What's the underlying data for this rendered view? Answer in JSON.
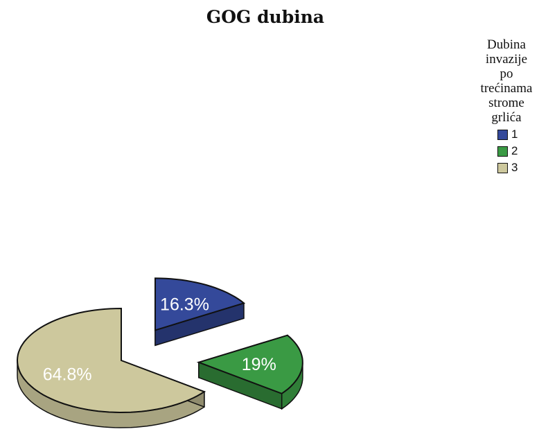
{
  "chart_data": {
    "type": "pie",
    "title": "GOG dubina",
    "legend_title": [
      "Dubina",
      "invazije",
      "po",
      "trećinama",
      "strome",
      "grlića"
    ],
    "legend_position": "top-right",
    "slices": [
      {
        "label": "1",
        "value": 16.3,
        "display": "16.3%",
        "color": "#34499a"
      },
      {
        "label": "2",
        "value": 19,
        "display": "19%",
        "color": "#3a9a44"
      },
      {
        "label": "3",
        "value": 64.8,
        "display": "64.8%",
        "color": "#cdc89d"
      }
    ]
  }
}
